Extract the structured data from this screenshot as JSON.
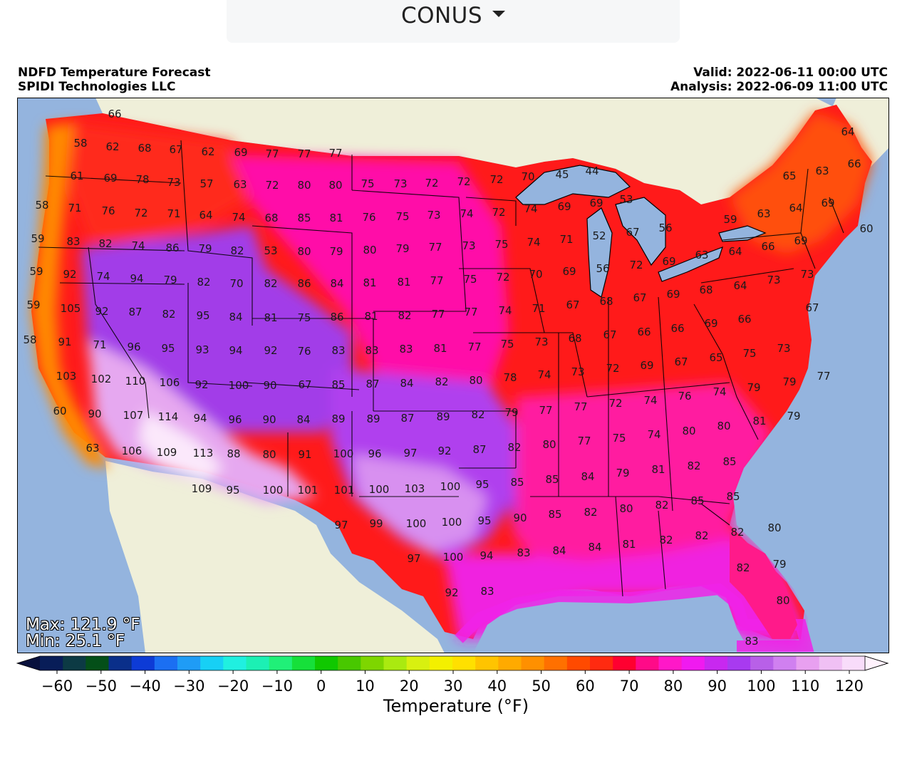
{
  "region_selector": {
    "value": "CONUS"
  },
  "header": {
    "title": "NDFD Temperature Forecast",
    "subtitle": "SPIDI Technologies LLC",
    "valid": "Valid: 2022-06-11 00:00 UTC",
    "analysis": "Analysis: 2022-06-09 11:00 UTC"
  },
  "stats": {
    "max": "Max: 121.9 °F",
    "min": "Min: 25.1 °F"
  },
  "colorbar": {
    "label": "Temperature (°F)",
    "ticks": [
      "−60",
      "−50",
      "−40",
      "−30",
      "−20",
      "−10",
      "0",
      "10",
      "20",
      "30",
      "40",
      "50",
      "60",
      "70",
      "80",
      "90",
      "100",
      "110",
      "120"
    ],
    "colors": [
      "#081d58",
      "#0c3a44",
      "#044f18",
      "#0a2f8a",
      "#0d3bd6",
      "#1b6ff2",
      "#1f9cf6",
      "#17d0f5",
      "#20f0e0",
      "#1cf0b4",
      "#20f078",
      "#16e03a",
      "#10c800",
      "#48c800",
      "#7ed600",
      "#aaea10",
      "#d8f010",
      "#f3f000",
      "#ffe000",
      "#ffc400",
      "#ffaa00",
      "#ff9000",
      "#ff7000",
      "#ff4a00",
      "#ff2a10",
      "#ff0030",
      "#ff0a88",
      "#ff18c8",
      "#f01af0",
      "#c828f0",
      "#a83af0",
      "#b860e8",
      "#d080f0",
      "#e8a0f0",
      "#f0c0f4",
      "#f8dcfa"
    ],
    "over_color": "#fff2fd",
    "under_color": "#08103c"
  },
  "map": {
    "colors": {
      "ocean": "#94b4de",
      "land": "#efefd9",
      "lake": "#94b4de"
    },
    "temperature_labels": [
      [
        "66",
        161,
        160
      ],
      [
        "58",
        113,
        201
      ],
      [
        "62",
        158,
        206
      ],
      [
        "68",
        203,
        208
      ],
      [
        "67",
        247,
        210
      ],
      [
        "62",
        292,
        213
      ],
      [
        "69",
        338,
        214
      ],
      [
        "77",
        382,
        216
      ],
      [
        "77",
        427,
        216
      ],
      [
        "77",
        471,
        215
      ],
      [
        "61",
        108,
        247
      ],
      [
        "69",
        155,
        250
      ],
      [
        "78",
        200,
        252
      ],
      [
        "73",
        244,
        256
      ],
      [
        "57",
        290,
        258
      ],
      [
        "63",
        337,
        259
      ],
      [
        "72",
        382,
        260
      ],
      [
        "80",
        427,
        260
      ],
      [
        "80",
        471,
        260
      ],
      [
        "75",
        516,
        258
      ],
      [
        "73",
        562,
        258
      ],
      [
        "72",
        606,
        257
      ],
      [
        "72",
        651,
        255
      ],
      [
        "72",
        697,
        252
      ],
      [
        "70",
        741,
        248
      ],
      [
        "45",
        789,
        245
      ],
      [
        "44",
        831,
        240
      ],
      [
        "65",
        1108,
        247
      ],
      [
        "63",
        1154,
        240
      ],
      [
        "66",
        1199,
        230
      ],
      [
        "64",
        1190,
        185
      ],
      [
        "58",
        59,
        288
      ],
      [
        "71",
        105,
        292
      ],
      [
        "76",
        152,
        296
      ],
      [
        "72",
        198,
        299
      ],
      [
        "71",
        244,
        300
      ],
      [
        "64",
        289,
        302
      ],
      [
        "74",
        335,
        305
      ],
      [
        "68",
        381,
        306
      ],
      [
        "85",
        427,
        306
      ],
      [
        "81",
        472,
        306
      ],
      [
        "76",
        518,
        305
      ],
      [
        "75",
        565,
        304
      ],
      [
        "73",
        609,
        302
      ],
      [
        "74",
        655,
        300
      ],
      [
        "72",
        700,
        298
      ],
      [
        "74",
        745,
        293
      ],
      [
        "69",
        792,
        290
      ],
      [
        "69",
        837,
        285
      ],
      [
        "53",
        879,
        280
      ],
      [
        "59",
        1025,
        308
      ],
      [
        "63",
        1072,
        300
      ],
      [
        "64",
        1117,
        292
      ],
      [
        "69",
        1162,
        285
      ],
      [
        "60",
        1216,
        321
      ],
      [
        "59",
        53,
        335
      ],
      [
        "83",
        103,
        339
      ],
      [
        "82",
        148,
        342
      ],
      [
        "74",
        194,
        345
      ],
      [
        "86",
        242,
        348
      ],
      [
        "79",
        288,
        349
      ],
      [
        "82",
        333,
        352
      ],
      [
        "53",
        380,
        352
      ],
      [
        "80",
        427,
        353
      ],
      [
        "79",
        472,
        353
      ],
      [
        "80",
        519,
        351
      ],
      [
        "79",
        565,
        349
      ],
      [
        "77",
        611,
        347
      ],
      [
        "73",
        658,
        345
      ],
      [
        "75",
        704,
        343
      ],
      [
        "74",
        749,
        340
      ],
      [
        "71",
        795,
        336
      ],
      [
        "52",
        841,
        331
      ],
      [
        "67",
        888,
        326
      ],
      [
        "56",
        934,
        320
      ],
      [
        "63",
        985,
        358
      ],
      [
        "64",
        1032,
        353
      ],
      [
        "66",
        1078,
        346
      ],
      [
        "69",
        1124,
        338
      ],
      [
        "59",
        51,
        381
      ],
      [
        "92",
        98,
        385
      ],
      [
        "74",
        145,
        388
      ],
      [
        "94",
        192,
        391
      ],
      [
        "79",
        239,
        393
      ],
      [
        "82",
        286,
        396
      ],
      [
        "70",
        332,
        398
      ],
      [
        "82",
        380,
        398
      ],
      [
        "86",
        427,
        398
      ],
      [
        "84",
        473,
        398
      ],
      [
        "81",
        519,
        397
      ],
      [
        "81",
        567,
        396
      ],
      [
        "77",
        613,
        394
      ],
      [
        "75",
        660,
        392
      ],
      [
        "72",
        706,
        389
      ],
      [
        "70",
        752,
        385
      ],
      [
        "69",
        799,
        381
      ],
      [
        "56",
        846,
        377
      ],
      [
        "72",
        893,
        372
      ],
      [
        "69",
        939,
        367
      ],
      [
        "68",
        991,
        407
      ],
      [
        "64",
        1039,
        401
      ],
      [
        "73",
        1086,
        393
      ],
      [
        "73",
        1133,
        385
      ],
      [
        "59",
        47,
        428
      ],
      [
        "105",
        99,
        433
      ],
      [
        "92",
        143,
        437
      ],
      [
        "87",
        190,
        438
      ],
      [
        "82",
        237,
        441
      ],
      [
        "95",
        285,
        443
      ],
      [
        "84",
        331,
        445
      ],
      [
        "81",
        380,
        446
      ],
      [
        "75",
        427,
        446
      ],
      [
        "86",
        473,
        445
      ],
      [
        "81",
        521,
        444
      ],
      [
        "82",
        568,
        443
      ],
      [
        "77",
        615,
        441
      ],
      [
        "77",
        661,
        438
      ],
      [
        "74",
        709,
        436
      ],
      [
        "71",
        756,
        433
      ],
      [
        "67",
        804,
        428
      ],
      [
        "68",
        851,
        423
      ],
      [
        "67",
        898,
        418
      ],
      [
        "69",
        945,
        413
      ],
      [
        "67",
        1140,
        432
      ],
      [
        "58",
        42,
        477
      ],
      [
        "91",
        91,
        480
      ],
      [
        "71",
        140,
        484
      ],
      [
        "96",
        188,
        487
      ],
      [
        "95",
        236,
        489
      ],
      [
        "93",
        284,
        491
      ],
      [
        "94",
        331,
        492
      ],
      [
        "92",
        380,
        492
      ],
      [
        "76",
        427,
        493
      ],
      [
        "83",
        475,
        492
      ],
      [
        "83",
        522,
        492
      ],
      [
        "83",
        570,
        490
      ],
      [
        "81",
        618,
        489
      ],
      [
        "77",
        666,
        487
      ],
      [
        "75",
        712,
        483
      ],
      [
        "73",
        760,
        480
      ],
      [
        "68",
        807,
        475
      ],
      [
        "67",
        856,
        470
      ],
      [
        "66",
        904,
        466
      ],
      [
        "66",
        951,
        461
      ],
      [
        "69",
        998,
        454
      ],
      [
        "66",
        1045,
        448
      ],
      [
        "103",
        93,
        528
      ],
      [
        "102",
        142,
        532
      ],
      [
        "110",
        190,
        535
      ],
      [
        "106",
        238,
        537
      ],
      [
        "92",
        283,
        540
      ],
      [
        "100",
        335,
        541
      ],
      [
        "90",
        379,
        541
      ],
      [
        "67",
        428,
        540
      ],
      [
        "85",
        475,
        540
      ],
      [
        "87",
        523,
        539
      ],
      [
        "84",
        571,
        538
      ],
      [
        "82",
        620,
        536
      ],
      [
        "80",
        668,
        534
      ],
      [
        "78",
        716,
        530
      ],
      [
        "74",
        764,
        526
      ],
      [
        "73",
        811,
        522
      ],
      [
        "72",
        860,
        517
      ],
      [
        "69",
        908,
        513
      ],
      [
        "67",
        956,
        508
      ],
      [
        "65",
        1005,
        502
      ],
      [
        "75",
        1052,
        496
      ],
      [
        "73",
        1100,
        489
      ],
      [
        "60",
        84,
        577
      ],
      [
        "90",
        133,
        581
      ],
      [
        "107",
        187,
        583
      ],
      [
        "114",
        236,
        585
      ],
      [
        "94",
        281,
        587
      ],
      [
        "96",
        330,
        589
      ],
      [
        "90",
        378,
        589
      ],
      [
        "84",
        426,
        589
      ],
      [
        "89",
        475,
        588
      ],
      [
        "89",
        524,
        588
      ],
      [
        "87",
        572,
        587
      ],
      [
        "89",
        622,
        585
      ],
      [
        "82",
        671,
        582
      ],
      [
        "79",
        718,
        579
      ],
      [
        "77",
        766,
        576
      ],
      [
        "77",
        815,
        571
      ],
      [
        "72",
        864,
        566
      ],
      [
        "74",
        913,
        562
      ],
      [
        "76",
        961,
        556
      ],
      [
        "74",
        1010,
        550
      ],
      [
        "79",
        1058,
        544
      ],
      [
        "79",
        1108,
        536
      ],
      [
        "77",
        1156,
        528
      ],
      [
        "63",
        130,
        629
      ],
      [
        "106",
        185,
        633
      ],
      [
        "109",
        234,
        635
      ],
      [
        "113",
        285,
        636
      ],
      [
        "88",
        328,
        637
      ],
      [
        "80",
        378,
        638
      ],
      [
        "91",
        428,
        638
      ],
      [
        "100",
        482,
        637
      ],
      [
        "96",
        526,
        637
      ],
      [
        "97",
        576,
        636
      ],
      [
        "92",
        624,
        633
      ],
      [
        "87",
        673,
        631
      ],
      [
        "82",
        722,
        628
      ],
      [
        "80",
        771,
        624
      ],
      [
        "77",
        820,
        619
      ],
      [
        "75",
        869,
        615
      ],
      [
        "74",
        918,
        610
      ],
      [
        "80",
        967,
        605
      ],
      [
        "80",
        1016,
        598
      ],
      [
        "81",
        1066,
        591
      ],
      [
        "79",
        1114,
        584
      ],
      [
        "109",
        283,
        686
      ],
      [
        "95",
        327,
        688
      ],
      [
        "100",
        383,
        688
      ],
      [
        "101",
        432,
        688
      ],
      [
        "101",
        483,
        688
      ],
      [
        "100",
        532,
        687
      ],
      [
        "103",
        582,
        686
      ],
      [
        "100",
        632,
        683
      ],
      [
        "95",
        677,
        680
      ],
      [
        "85",
        726,
        677
      ],
      [
        "85",
        775,
        673
      ],
      [
        "84",
        825,
        669
      ],
      [
        "79",
        874,
        664
      ],
      [
        "81",
        924,
        659
      ],
      [
        "82",
        974,
        654
      ],
      [
        "85",
        1024,
        648
      ],
      [
        "97",
        479,
        737
      ],
      [
        "99",
        528,
        735
      ],
      [
        "100",
        584,
        735
      ],
      [
        "100",
        634,
        733
      ],
      [
        "95",
        680,
        731
      ],
      [
        "90",
        730,
        727
      ],
      [
        "85",
        779,
        722
      ],
      [
        "82",
        829,
        719
      ],
      [
        "80",
        879,
        714
      ],
      [
        "82",
        929,
        709
      ],
      [
        "85",
        979,
        703
      ],
      [
        "85",
        1029,
        697
      ],
      [
        "97",
        581,
        784
      ],
      [
        "100",
        636,
        782
      ],
      [
        "94",
        683,
        780
      ],
      [
        "83",
        735,
        776
      ],
      [
        "84",
        785,
        773
      ],
      [
        "84",
        835,
        768
      ],
      [
        "81",
        883,
        764
      ],
      [
        "82",
        935,
        758
      ],
      [
        "82",
        985,
        752
      ],
      [
        "82",
        1035,
        747
      ],
      [
        "80",
        1087,
        741
      ],
      [
        "92",
        634,
        832
      ],
      [
        "83",
        684,
        830
      ],
      [
        "82",
        1043,
        797
      ],
      [
        "79",
        1094,
        792
      ],
      [
        "80",
        1099,
        843
      ],
      [
        "83",
        1055,
        900
      ]
    ]
  }
}
